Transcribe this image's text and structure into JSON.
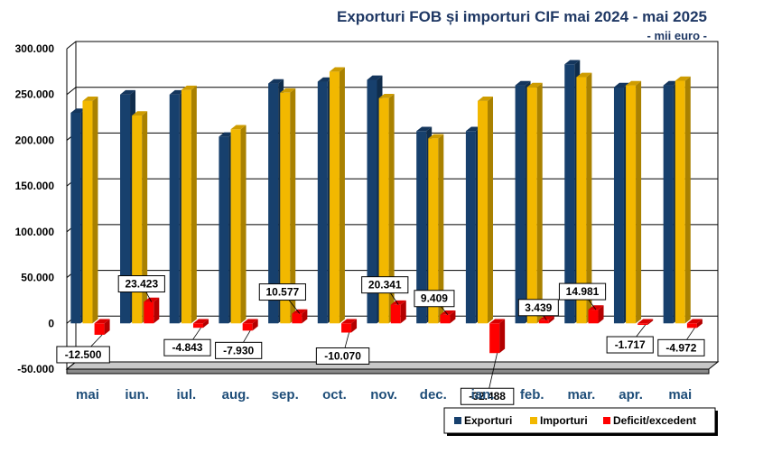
{
  "chart_data": {
    "type": "bar",
    "title": "Exporturi FOB și importuri CIF mai 2024 - mai 2025",
    "subtitle": "- mii euro -",
    "categories": [
      "mai",
      "iun.",
      "iul.",
      "aug.",
      "sep.",
      "oct.",
      "nov.",
      "dec.",
      "ian.",
      "feb.",
      "mar.",
      "apr.",
      "mai"
    ],
    "ylim": [
      -50000,
      300000
    ],
    "yticks": [
      -50000,
      0,
      50000,
      100000,
      150000,
      200000,
      250000,
      300000
    ],
    "ytick_labels": [
      "-50.000",
      "0",
      "50.000",
      "100.000",
      "150.000",
      "200.000",
      "250.000",
      "300.000"
    ],
    "grid": true,
    "legend_position": "bottom-right",
    "series": [
      {
        "name": "Exporturi",
        "color": "#17406d",
        "values": [
          230000,
          250000,
          250000,
          204000,
          262000,
          264000,
          266000,
          210000,
          210000,
          260000,
          283000,
          258000,
          260000
        ]
      },
      {
        "name": "Importuri",
        "color": "#f2b800",
        "values": [
          243000,
          227000,
          255000,
          212000,
          252000,
          275000,
          246000,
          202000,
          243000,
          258000,
          269000,
          260000,
          265000
        ]
      },
      {
        "name": "Deficit/excedent",
        "color": "#ff0000",
        "values": [
          -12500,
          23423,
          -4843,
          -7930,
          10577,
          -10070,
          20341,
          9409,
          -32488,
          3439,
          14981,
          -1717,
          -4972
        ]
      }
    ],
    "data_labels": [
      "-12.500",
      "23.423",
      "-4.843",
      "-7.930",
      "10.577",
      "-10.070",
      "20.341",
      "9.409",
      "-32.488",
      "3.439",
      "14.981",
      "-1.717",
      "-4.972"
    ]
  }
}
